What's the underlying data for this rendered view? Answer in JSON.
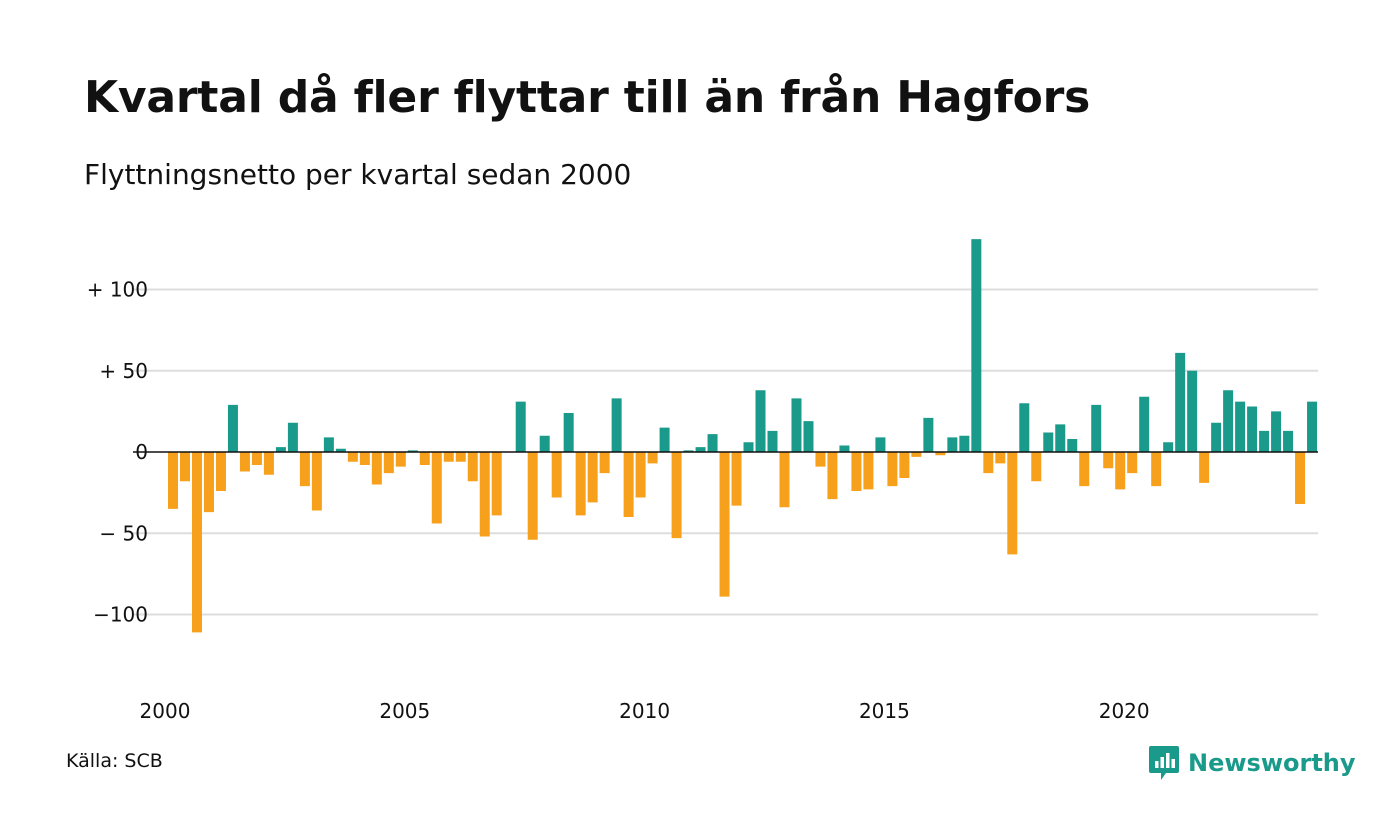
{
  "title": "Kvartal då fler flyttar till än från Hagfors",
  "subtitle": "Flyttningsnetto per kvartal sedan 2000",
  "source": "Källa: SCB",
  "brand": "Newsworthy",
  "colors": {
    "positive": "#1a9a8a",
    "negative": "#f7a01c",
    "grid": "#dddddd",
    "zero": "#111111"
  },
  "chart_data": {
    "type": "bar",
    "title": "Kvartal då fler flyttar till än från Hagfors",
    "subtitle": "Flyttningsnetto per kvartal sedan 2000",
    "xlabel": "",
    "ylabel": "",
    "x_start": "2000 Q1",
    "ylim": [
      -130,
      135
    ],
    "grid": true,
    "legend": "none",
    "y_ticks": [
      {
        "value": 100,
        "label": "+ 100"
      },
      {
        "value": 50,
        "label": "+  50"
      },
      {
        "value": 0,
        "label": "0"
      },
      {
        "value": -50,
        "label": "− 50"
      },
      {
        "value": -100,
        "label": "−100"
      }
    ],
    "x_ticks": [
      {
        "year": 2000,
        "label": "2000"
      },
      {
        "year": 2005,
        "label": "2005"
      },
      {
        "year": 2010,
        "label": "2010"
      },
      {
        "year": 2015,
        "label": "2015"
      },
      {
        "year": 2020,
        "label": "2020"
      }
    ],
    "values": [
      -35,
      -18,
      -111,
      -37,
      -24,
      29,
      -12,
      -8,
      -14,
      3,
      18,
      -21,
      -36,
      9,
      2,
      -6,
      -8,
      -20,
      -13,
      -9,
      1,
      -8,
      -44,
      -6,
      -6,
      -18,
      -52,
      -39,
      0,
      31,
      -54,
      10,
      -28,
      24,
      -39,
      -31,
      -13,
      33,
      -40,
      -28,
      -7,
      15,
      -53,
      1,
      3,
      11,
      -89,
      -33,
      6,
      38,
      13,
      -34,
      33,
      19,
      -9,
      -29,
      4,
      -24,
      -23,
      9,
      -21,
      -16,
      -3,
      21,
      -2,
      9,
      10,
      131,
      -13,
      -7,
      -63,
      30,
      -18,
      12,
      17,
      8,
      -21,
      29,
      -10,
      -23,
      -13,
      34,
      -21,
      6,
      61,
      50,
      -19,
      18,
      38,
      31,
      28,
      13,
      25,
      13,
      -32,
      31
    ]
  }
}
